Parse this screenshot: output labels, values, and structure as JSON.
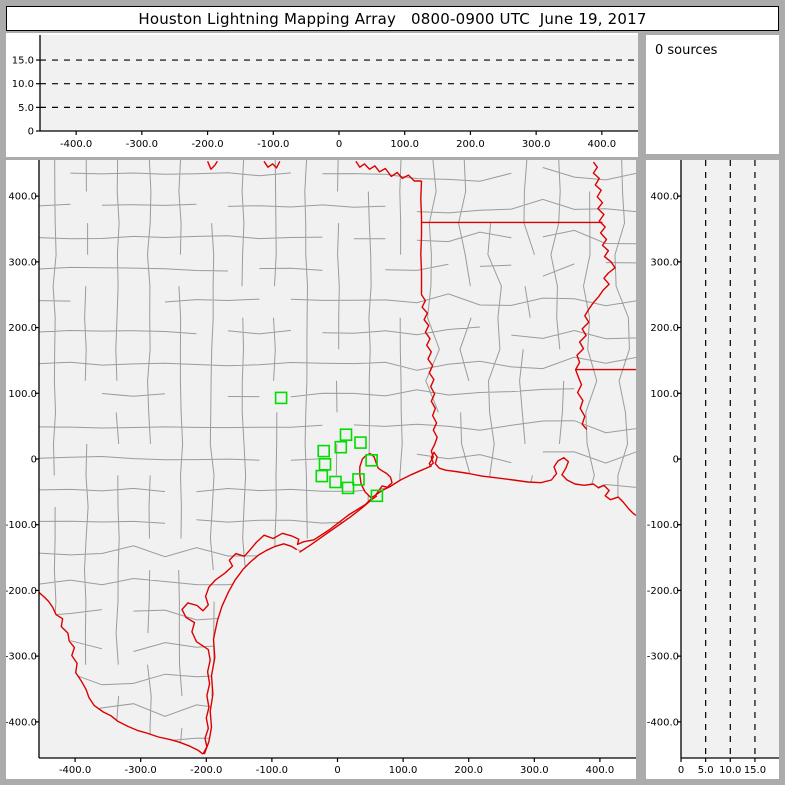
{
  "title": "Houston Lightning Mapping Array   0800-0900 UTC  June 19, 2017",
  "sources_panel": {
    "label": "0 sources"
  },
  "colors": {
    "frame": "#ababab",
    "panel_bg": "#ffffff",
    "plot_bg": "#f1f1f1",
    "axis": "#000000",
    "county_line": "#9b9b9b",
    "state_line": "#dd0000",
    "station": "#00dd00",
    "text": "#000000"
  },
  "axes": {
    "ew_ticks": [
      {
        "km": -400,
        "label": "-400.0"
      },
      {
        "km": -300,
        "label": "-300.0"
      },
      {
        "km": -200,
        "label": "-200.0"
      },
      {
        "km": -100,
        "label": "-100.0"
      },
      {
        "km": 0,
        "label": "0"
      },
      {
        "km": 100,
        "label": "100.0"
      },
      {
        "km": 200,
        "label": "200.0"
      },
      {
        "km": 300,
        "label": "300.0"
      },
      {
        "km": 400,
        "label": "400.0"
      }
    ],
    "ns_ticks": [
      {
        "km": 400,
        "label": "400.0"
      },
      {
        "km": 300,
        "label": "300.0"
      },
      {
        "km": 200,
        "label": "200.0"
      },
      {
        "km": 100,
        "label": "100.0"
      },
      {
        "km": 0,
        "label": "0"
      },
      {
        "km": -100,
        "label": "-100.0"
      },
      {
        "km": -200,
        "label": "-200.0"
      },
      {
        "km": -300,
        "label": "-300.0"
      },
      {
        "km": -400,
        "label": "-400.0"
      }
    ],
    "alt_ticks": [
      {
        "km": 0,
        "label": "0"
      },
      {
        "km": 5,
        "label": "5.0"
      },
      {
        "km": 10,
        "label": "10.0"
      },
      {
        "km": 15,
        "label": "15.0"
      }
    ],
    "alt_gridlines_km": [
      5,
      10,
      15
    ],
    "ew_range_km": [
      -455,
      455
    ],
    "ns_range_km": [
      -455,
      455
    ],
    "alt_range_km": [
      0,
      20
    ]
  },
  "map": {
    "stations_km": [
      [
        -86,
        93
      ],
      [
        13,
        37
      ],
      [
        5,
        18
      ],
      [
        -21,
        12
      ],
      [
        35,
        25
      ],
      [
        -19,
        -8
      ],
      [
        -24,
        -26
      ],
      [
        -3,
        -35
      ],
      [
        16,
        -44
      ],
      [
        32,
        -31
      ],
      [
        52,
        -2
      ],
      [
        60,
        -56
      ]
    ],
    "counties": {
      "cell_km": 48,
      "seed": 11,
      "skip_prob": 0.16
    },
    "borders": {
      "red_river": [
        [
          [
            -198,
            453
          ],
          [
            -193,
            441
          ],
          [
            -187,
            447
          ],
          [
            -183,
            453
          ]
        ],
        [
          [
            -112,
            453
          ],
          [
            -106,
            444
          ],
          [
            -99,
            449
          ],
          [
            -93,
            443
          ],
          [
            -88,
            453
          ]
        ],
        [
          [
            28,
            453
          ],
          [
            34,
            444
          ],
          [
            41,
            449
          ],
          [
            49,
            441
          ],
          [
            57,
            446
          ],
          [
            64,
            437
          ],
          [
            73,
            442
          ],
          [
            82,
            430
          ],
          [
            91,
            436
          ],
          [
            99,
            427
          ],
          [
            108,
            432
          ],
          [
            117,
            423
          ],
          [
            128,
            423
          ]
        ]
      ],
      "tx_ar_la": [
        [
          128,
          423
        ],
        [
          127,
          396
        ],
        [
          128,
          368
        ],
        [
          128,
          340
        ],
        [
          127,
          312
        ],
        [
          128,
          285
        ],
        [
          128,
          250
        ],
        [
          134,
          241
        ],
        [
          129,
          231
        ],
        [
          137,
          222
        ],
        [
          132,
          212
        ],
        [
          139,
          203
        ],
        [
          134,
          193
        ],
        [
          141,
          183
        ],
        [
          136,
          173
        ],
        [
          143,
          163
        ],
        [
          138,
          152
        ],
        [
          145,
          142
        ],
        [
          140,
          131
        ],
        [
          147,
          121
        ],
        [
          142,
          110
        ],
        [
          148,
          99
        ],
        [
          143,
          88
        ],
        [
          149,
          77
        ],
        [
          145,
          66
        ],
        [
          151,
          55
        ],
        [
          146,
          44
        ],
        [
          152,
          33
        ],
        [
          148,
          22
        ],
        [
          143,
          12
        ],
        [
          146,
          3
        ],
        [
          140,
          -7
        ],
        [
          143,
          -12
        ]
      ],
      "ar_la_33n": [
        [
          128,
          360
        ],
        [
          404,
          360
        ]
      ],
      "mississippi": [
        [
          390,
          452
        ],
        [
          396,
          444
        ],
        [
          390,
          435
        ],
        [
          399,
          427
        ],
        [
          393,
          417
        ],
        [
          402,
          409
        ],
        [
          396,
          399
        ],
        [
          404,
          390
        ],
        [
          397,
          381
        ],
        [
          406,
          372
        ],
        [
          399,
          362
        ],
        [
          408,
          353
        ],
        [
          401,
          344
        ],
        [
          410,
          334
        ],
        [
          404,
          325
        ],
        [
          413,
          317
        ],
        [
          407,
          308
        ],
        [
          417,
          300
        ],
        [
          423,
          291
        ],
        [
          413,
          283
        ],
        [
          406,
          275
        ],
        [
          414,
          266
        ],
        [
          405,
          257
        ],
        [
          398,
          247
        ],
        [
          390,
          238
        ],
        [
          383,
          228
        ],
        [
          377,
          218
        ],
        [
          383,
          208
        ],
        [
          373,
          198
        ],
        [
          379,
          188
        ],
        [
          369,
          178
        ],
        [
          375,
          168
        ],
        [
          365,
          158
        ],
        [
          369,
          147
        ],
        [
          363,
          136
        ],
        [
          367,
          125
        ],
        [
          372,
          113
        ],
        [
          366,
          101
        ],
        [
          374,
          89
        ],
        [
          370,
          77
        ],
        [
          377,
          65
        ],
        [
          373,
          53
        ],
        [
          380,
          45
        ]
      ],
      "la_ms_31n": [
        [
          363,
          136
        ],
        [
          455,
          136
        ]
      ],
      "rio_grande": [
        [
          -455,
          -203
        ],
        [
          -447,
          -210
        ],
        [
          -440,
          -217
        ],
        [
          -434,
          -226
        ],
        [
          -429,
          -237
        ],
        [
          -419,
          -243
        ],
        [
          -421,
          -255
        ],
        [
          -411,
          -265
        ],
        [
          -409,
          -277
        ],
        [
          -401,
          -287
        ],
        [
          -405,
          -299
        ],
        [
          -397,
          -311
        ],
        [
          -399,
          -325
        ],
        [
          -391,
          -337
        ],
        [
          -383,
          -351
        ],
        [
          -379,
          -363
        ],
        [
          -371,
          -375
        ],
        [
          -357,
          -385
        ],
        [
          -345,
          -391
        ],
        [
          -335,
          -399
        ],
        [
          -319,
          -407
        ],
        [
          -305,
          -413
        ],
        [
          -291,
          -417
        ],
        [
          -273,
          -423
        ],
        [
          -255,
          -427
        ],
        [
          -241,
          -431
        ],
        [
          -225,
          -437
        ],
        [
          -213,
          -443
        ],
        [
          -205,
          -449
        ]
      ],
      "coast_mainland": [
        [
          -205,
          -449
        ],
        [
          -199,
          -438
        ],
        [
          -202,
          -425
        ],
        [
          -197,
          -410
        ],
        [
          -200,
          -394
        ],
        [
          -196,
          -378
        ],
        [
          -199,
          -360
        ],
        [
          -195,
          -342
        ],
        [
          -198,
          -324
        ],
        [
          -194,
          -306
        ],
        [
          -197,
          -290
        ],
        [
          -215,
          -278
        ],
        [
          -222,
          -263
        ],
        [
          -218,
          -249
        ],
        [
          -231,
          -241
        ],
        [
          -237,
          -229
        ],
        [
          -228,
          -219
        ],
        [
          -214,
          -223
        ],
        [
          -205,
          -231
        ],
        [
          -197,
          -222
        ],
        [
          -201,
          -209
        ],
        [
          -196,
          -195
        ],
        [
          -186,
          -184
        ],
        [
          -172,
          -174
        ],
        [
          -160,
          -163
        ],
        [
          -165,
          -154
        ],
        [
          -155,
          -144
        ],
        [
          -142,
          -148
        ],
        [
          -133,
          -138
        ],
        [
          -124,
          -127
        ],
        [
          -112,
          -116
        ],
        [
          -98,
          -121
        ],
        [
          -84,
          -113
        ],
        [
          -70,
          -117
        ],
        [
          -59,
          -122
        ],
        [
          -61,
          -130
        ],
        [
          -52,
          -126
        ],
        [
          -36,
          -123
        ],
        [
          -13,
          -108
        ],
        [
          17,
          -85
        ],
        [
          43,
          -69
        ],
        [
          52,
          -60
        ]
      ],
      "galveston_bay": [
        [
          52,
          -60
        ],
        [
          42,
          -50
        ],
        [
          36,
          -38
        ],
        [
          34,
          -24
        ],
        [
          34,
          -12
        ],
        [
          38,
          0
        ],
        [
          44,
          6
        ],
        [
          50,
          8
        ],
        [
          56,
          3
        ],
        [
          59,
          -6
        ],
        [
          62,
          -14
        ],
        [
          68,
          -18
        ],
        [
          75,
          -22
        ],
        [
          81,
          -28
        ],
        [
          83,
          -36
        ],
        [
          76,
          -43
        ],
        [
          68,
          -41
        ],
        [
          63,
          -48
        ],
        [
          58,
          -55
        ],
        [
          53,
          -58
        ],
        [
          52,
          -60
        ]
      ],
      "coast_east": [
        [
          58,
          -55
        ],
        [
          68,
          -48
        ],
        [
          80,
          -42
        ],
        [
          96,
          -32
        ],
        [
          112,
          -24
        ],
        [
          128,
          -17
        ],
        [
          140,
          -12
        ],
        [
          146,
          -6
        ],
        [
          143,
          2
        ],
        [
          147,
          10
        ],
        [
          152,
          3
        ],
        [
          149,
          -7
        ],
        [
          155,
          -14
        ],
        [
          165,
          -17
        ],
        [
          180,
          -19
        ],
        [
          200,
          -22
        ],
        [
          220,
          -26
        ],
        [
          245,
          -29
        ],
        [
          268,
          -32
        ],
        [
          290,
          -35
        ],
        [
          310,
          -36
        ],
        [
          326,
          -32
        ],
        [
          334,
          -22
        ],
        [
          330,
          -12
        ],
        [
          336,
          -3
        ],
        [
          345,
          2
        ],
        [
          352,
          -4
        ],
        [
          348,
          -14
        ],
        [
          342,
          -24
        ],
        [
          350,
          -32
        ],
        [
          362,
          -38
        ],
        [
          376,
          -40
        ],
        [
          390,
          -38
        ],
        [
          398,
          -44
        ],
        [
          406,
          -40
        ],
        [
          414,
          -48
        ],
        [
          408,
          -56
        ],
        [
          416,
          -62
        ],
        [
          428,
          -58
        ],
        [
          436,
          -66
        ],
        [
          444,
          -76
        ],
        [
          450,
          -82
        ],
        [
          455,
          -86
        ]
      ],
      "barrier_islands": [
        [
          [
            -203,
            -449
          ],
          [
            -196,
            -430
          ],
          [
            -192,
            -408
          ],
          [
            -194,
            -384
          ],
          [
            -190,
            -358
          ],
          [
            -192,
            -330
          ],
          [
            -187,
            -302
          ],
          [
            -189,
            -274
          ],
          [
            -183,
            -246
          ],
          [
            -176,
            -224
          ],
          [
            -166,
            -202
          ],
          [
            -156,
            -184
          ],
          [
            -144,
            -168
          ],
          [
            -132,
            -156
          ],
          [
            -120,
            -146
          ],
          [
            -108,
            -139
          ],
          [
            -95,
            -133
          ],
          [
            -82,
            -129
          ],
          [
            -70,
            -133
          ],
          [
            -62,
            -138
          ]
        ],
        [
          [
            -58,
            -142
          ],
          [
            -40,
            -130
          ],
          [
            -20,
            -116
          ],
          [
            0,
            -102
          ],
          [
            20,
            -88
          ],
          [
            38,
            -74
          ],
          [
            52,
            -62
          ],
          [
            60,
            -56
          ]
        ]
      ]
    }
  }
}
